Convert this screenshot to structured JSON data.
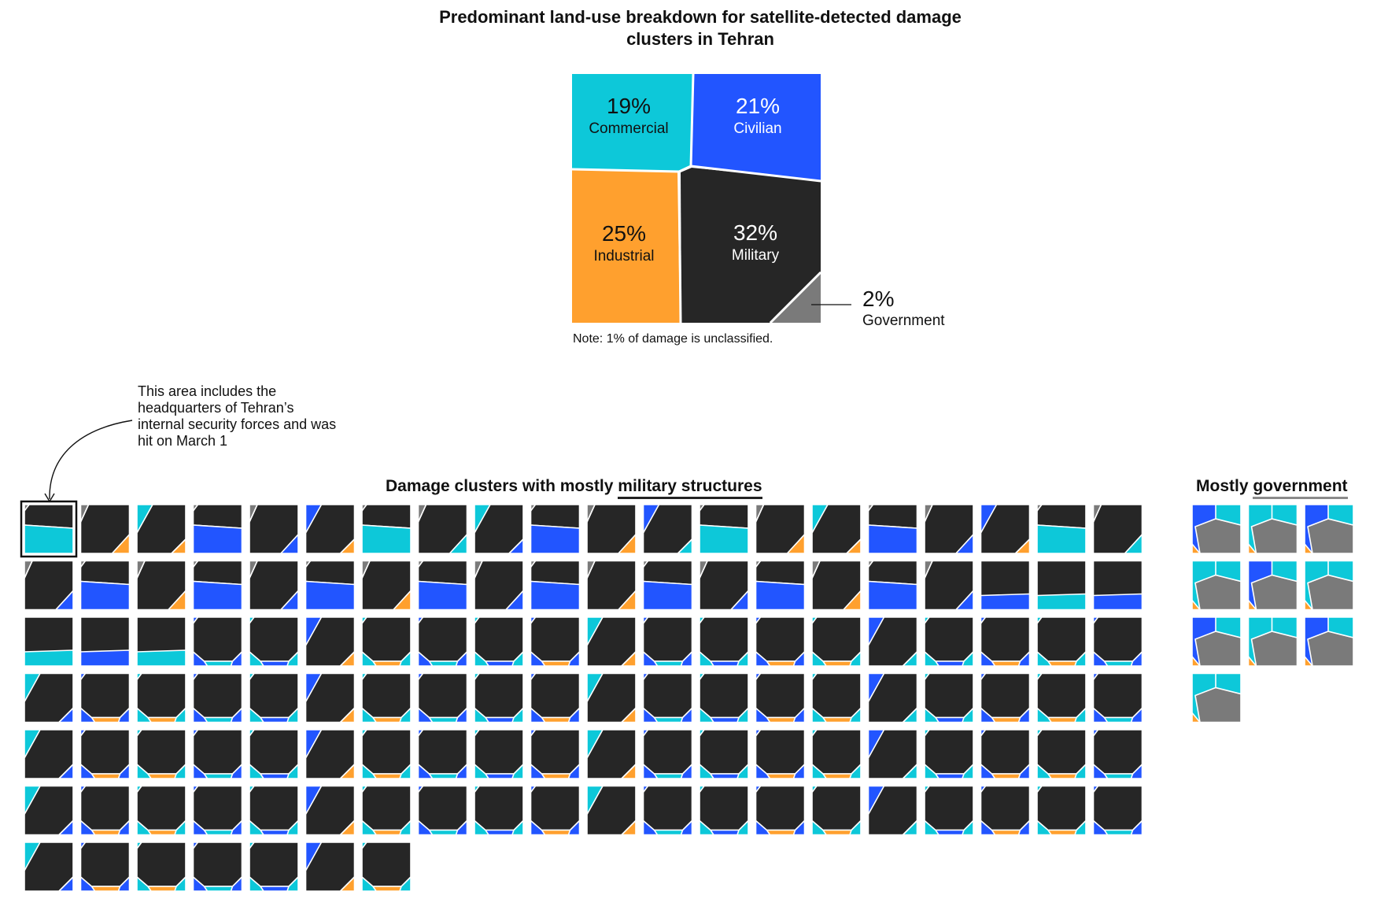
{
  "colors": {
    "commercial": "#0dc8d9",
    "civilian": "#2255ff",
    "industrial": "#ffa02e",
    "military": "#262626",
    "government": "#7a7a7a",
    "highlight_box": "#111111"
  },
  "chart_data": [
    {
      "type": "voronoi-treemap",
      "title": "Predominant land-use breakdown for satellite-detected damage clusters in Tehran",
      "segments": [
        {
          "name": "Commercial",
          "value": 19,
          "label": "19%"
        },
        {
          "name": "Civilian",
          "value": 21,
          "label": "21%"
        },
        {
          "name": "Industrial",
          "value": 25,
          "label": "25%"
        },
        {
          "name": "Military",
          "value": 32,
          "label": "32%"
        },
        {
          "name": "Government",
          "value": 2,
          "label": "2%"
        }
      ],
      "note": "Note: 1% of damage is unclassified."
    },
    {
      "type": "small-multiples",
      "title_prefix": "Damage clusters with mostly ",
      "title_emphasis": "military structures",
      "count": 127,
      "predominant": "Military"
    },
    {
      "type": "small-multiples",
      "title_prefix": "Mostly ",
      "title_emphasis": "government",
      "count": 10,
      "predominant": "Government"
    }
  ],
  "annotation": {
    "text": "This area includes the headquarters of Tehran’s internal security forces and was hit on March 1"
  }
}
